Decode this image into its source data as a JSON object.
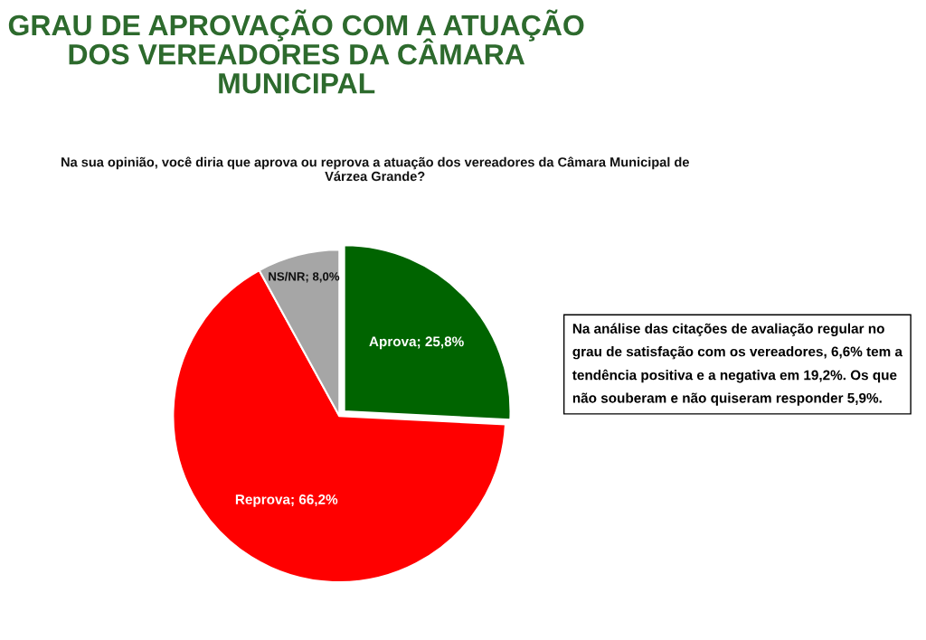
{
  "chart_data": {
    "type": "pie",
    "title": "GRAU DE APROVAÇÃO COM A ATUAÇÃO DOS VEREADORES DA CÂMARA MUNICIPAL",
    "subtitle": "Na sua opinião, você diria que aprova ou reprova a atuação dos vereadores da Câmara Municipal de Várzea Grande?",
    "categories": [
      "Aprova",
      "Reprova",
      "NS/NR"
    ],
    "values": [
      25.8,
      66.2,
      8.0
    ],
    "colors": [
      "#006400",
      "#ff0000",
      "#a6a6a6"
    ],
    "value_labels": [
      "25,8%",
      "66,2%",
      "8,0%"
    ],
    "annotations": [
      "Na análise das citações de avaliação regular no grau de satisfação com os vereadores, 6,6% tem a tendência positiva e a negativa em 19,2%. Os que não souberam e não quiseram responder 5,9%."
    ]
  }
}
